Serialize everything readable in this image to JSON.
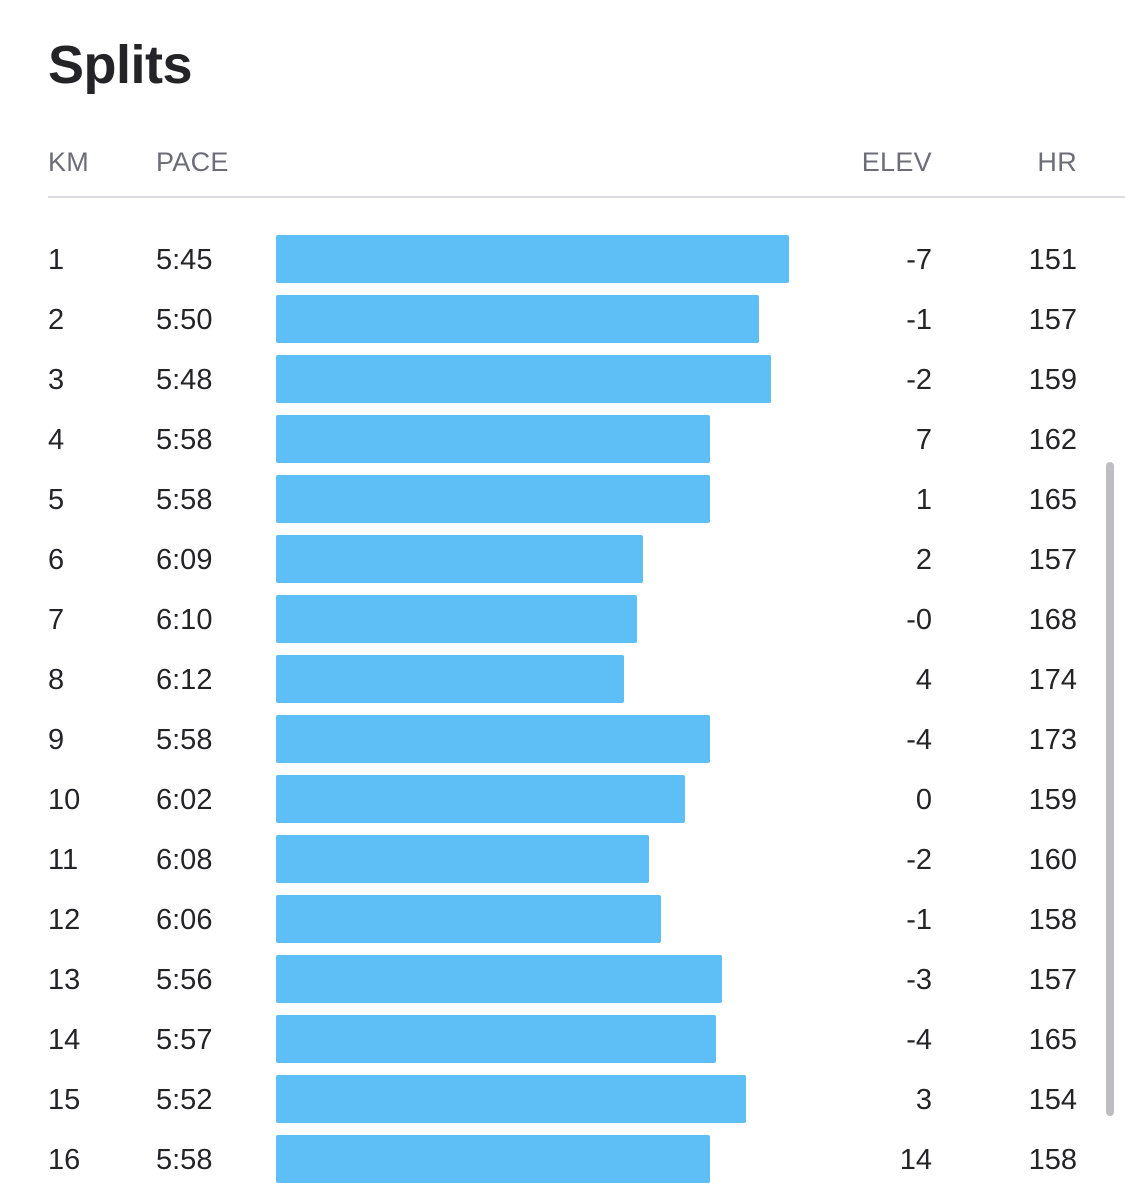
{
  "title": "Splits",
  "columns": {
    "km": "KM",
    "pace": "PACE",
    "elev": "ELEV",
    "hr": "HR"
  },
  "colors": {
    "bar": "#5ebff7",
    "text": "#242428",
    "header_text": "#6d6d78",
    "divider": "#dcdce0"
  },
  "splits": [
    {
      "km": "1",
      "pace": "5:45",
      "elev": "-7",
      "hr": "151"
    },
    {
      "km": "2",
      "pace": "5:50",
      "elev": "-1",
      "hr": "157"
    },
    {
      "km": "3",
      "pace": "5:48",
      "elev": "-2",
      "hr": "159"
    },
    {
      "km": "4",
      "pace": "5:58",
      "elev": "7",
      "hr": "162"
    },
    {
      "km": "5",
      "pace": "5:58",
      "elev": "1",
      "hr": "165"
    },
    {
      "km": "6",
      "pace": "6:09",
      "elev": "2",
      "hr": "157"
    },
    {
      "km": "7",
      "pace": "6:10",
      "elev": "-0",
      "hr": "168"
    },
    {
      "km": "8",
      "pace": "6:12",
      "elev": "4",
      "hr": "174"
    },
    {
      "km": "9",
      "pace": "5:58",
      "elev": "-4",
      "hr": "173"
    },
    {
      "km": "10",
      "pace": "6:02",
      "elev": "0",
      "hr": "159"
    },
    {
      "km": "11",
      "pace": "6:08",
      "elev": "-2",
      "hr": "160"
    },
    {
      "km": "12",
      "pace": "6:06",
      "elev": "-1",
      "hr": "158"
    },
    {
      "km": "13",
      "pace": "5:56",
      "elev": "-3",
      "hr": "157"
    },
    {
      "km": "14",
      "pace": "5:57",
      "elev": "-4",
      "hr": "165"
    },
    {
      "km": "15",
      "pace": "5:52",
      "elev": "3",
      "hr": "154"
    },
    {
      "km": "16",
      "pace": "5:58",
      "elev": "14",
      "hr": "158"
    }
  ]
}
